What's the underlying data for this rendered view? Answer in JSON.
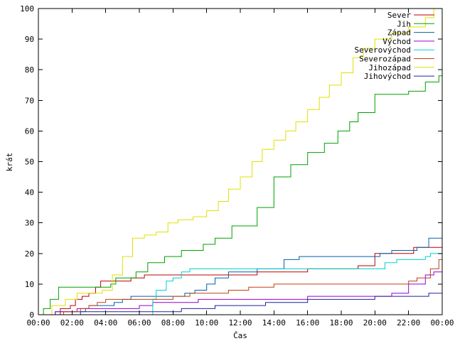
{
  "chart_data": {
    "type": "line",
    "title": "",
    "xlabel": "Čas",
    "ylabel": "krát",
    "xlim": [
      0,
      24
    ],
    "ylim": [
      0,
      100
    ],
    "grid": false,
    "legend_position": "top-right",
    "x_ticks": [
      {
        "value": 0,
        "label": "00:00"
      },
      {
        "value": 2,
        "label": "02:00"
      },
      {
        "value": 4,
        "label": "04:00"
      },
      {
        "value": 6,
        "label": "06:00"
      },
      {
        "value": 8,
        "label": "08:00"
      },
      {
        "value": 10,
        "label": "10:00"
      },
      {
        "value": 12,
        "label": "12:00"
      },
      {
        "value": 14,
        "label": "14:00"
      },
      {
        "value": 16,
        "label": "16:00"
      },
      {
        "value": 18,
        "label": "18:00"
      },
      {
        "value": 20,
        "label": "20:00"
      },
      {
        "value": 22,
        "label": "22:00"
      },
      {
        "value": 24,
        "label": "00:00"
      }
    ],
    "y_ticks": [
      0,
      10,
      20,
      30,
      40,
      50,
      60,
      70,
      80,
      90,
      100
    ],
    "series": [
      {
        "name": "Sever",
        "color": "#c00000",
        "x": [
          0,
          1.3,
          1.9,
          2.2,
          2.6,
          3.0,
          3.4,
          3.7,
          4.2,
          5.5,
          6.3,
          8.3,
          10.5,
          13.0,
          16.0,
          19.0,
          20.0,
          22.3,
          24.0
        ],
        "y": [
          0,
          2,
          3,
          5,
          6,
          7,
          9,
          11,
          11,
          12,
          13,
          13,
          13,
          14,
          15,
          16,
          20,
          22,
          22
        ]
      },
      {
        "name": "Jih",
        "color": "#00a000",
        "x": [
          0,
          0.3,
          0.7,
          1.2,
          3.5,
          4.3,
          4.6,
          5.8,
          6.5,
          7.5,
          8.5,
          9.8,
          10.5,
          11.5,
          13.0,
          14.0,
          15.0,
          16.0,
          17.0,
          17.8,
          18.5,
          19.0,
          20.0,
          20.5,
          22.0,
          23.0,
          23.8,
          24.0
        ],
        "y": [
          0,
          2,
          5,
          9,
          9,
          10,
          12,
          14,
          17,
          19,
          21,
          23,
          25,
          29,
          35,
          45,
          49,
          53,
          56,
          60,
          63,
          66,
          72,
          72,
          73,
          76,
          78,
          78
        ]
      },
      {
        "name": "Západ",
        "color": "#0060ad",
        "x": [
          0,
          0.5,
          1.0,
          2.5,
          2.8,
          3.0,
          4.0,
          4.5,
          5.0,
          5.5,
          6.3,
          8.7,
          9.3,
          10.0,
          10.5,
          11.3,
          13.0,
          14.3,
          14.6,
          15.5,
          18.0,
          20.3,
          21.0,
          22.0,
          22.5,
          23.2,
          24.0
        ],
        "y": [
          0,
          0,
          1,
          1,
          2,
          3,
          3,
          4,
          5,
          6,
          6,
          7,
          8,
          10,
          12,
          14,
          15,
          15,
          18,
          19,
          19,
          20,
          21,
          21,
          22,
          25,
          25
        ]
      },
      {
        "name": "Východ",
        "color": "#9400d3",
        "x": [
          0,
          0.5,
          1.0,
          1.8,
          2.3,
          2.8,
          3.0,
          4.0,
          6.0,
          6.8,
          8.0,
          9.5,
          11.5,
          12.0,
          12.5,
          16.0,
          18.0,
          20.0,
          20.5,
          21.0,
          22.0,
          23.0,
          23.5,
          24.0
        ],
        "y": [
          0,
          0,
          1,
          1,
          2,
          2,
          2,
          2,
          3,
          4,
          4,
          5,
          5,
          5,
          5,
          6,
          6,
          6,
          6,
          7,
          10,
          13,
          14,
          14
        ]
      },
      {
        "name": "Severovýchod",
        "color": "#00d0d0",
        "x": [
          0,
          1.5,
          4.8,
          6.8,
          7.0,
          7.6,
          8.0,
          8.5,
          9.0,
          12.0,
          16.0,
          20.2,
          20.6,
          21.3,
          22.0,
          23.0,
          23.3,
          24.0
        ],
        "y": [
          0,
          0,
          0,
          5,
          8,
          11,
          12,
          14,
          15,
          15,
          15,
          15,
          17,
          18,
          18,
          19,
          20,
          20
        ]
      },
      {
        "name": "Severozápad",
        "color": "#c04010",
        "x": [
          0,
          1.5,
          2.5,
          3.0,
          3.5,
          4.0,
          5.5,
          6.5,
          8.0,
          9.0,
          10.0,
          10.5,
          11.3,
          12.5,
          14.0,
          16.0,
          18.0,
          20.0,
          21.0,
          22.0,
          22.5,
          23.3,
          23.8,
          24.0
        ],
        "y": [
          0,
          1,
          2,
          3,
          4,
          5,
          5,
          5,
          6,
          7,
          7,
          7,
          8,
          9,
          10,
          10,
          10,
          10,
          10,
          11,
          12,
          15,
          18,
          18
        ]
      },
      {
        "name": "Jihozápad",
        "color": "#e0e000",
        "x": [
          0,
          0.8,
          1.6,
          2.3,
          3.8,
          4.4,
          5.0,
          5.6,
          6.3,
          7.0,
          7.7,
          8.3,
          9.2,
          10.0,
          10.7,
          11.3,
          12.0,
          12.7,
          13.3,
          14.0,
          14.7,
          15.3,
          16.0,
          16.7,
          17.3,
          18.0,
          18.7,
          19.3,
          20.0,
          21.0,
          22.0,
          23.0,
          23.5,
          24.0
        ],
        "y": [
          0,
          3,
          5,
          7,
          8,
          13,
          19,
          25,
          26,
          27,
          30,
          31,
          32,
          34,
          37,
          41,
          45,
          50,
          54,
          57,
          60,
          63,
          67,
          71,
          75,
          79,
          84,
          87,
          90,
          92,
          94,
          97,
          100,
          100
        ]
      },
      {
        "name": "Jihovýchod",
        "color": "#2020a0",
        "x": [
          0,
          2.0,
          2.5,
          3.0,
          4.0,
          6.0,
          8.5,
          10.5,
          13.5,
          14.5,
          16.0,
          18.0,
          20.0,
          22.0,
          23.2,
          24.0
        ],
        "y": [
          0,
          0,
          1,
          1,
          1,
          1,
          2,
          3,
          4,
          4,
          5,
          5,
          6,
          6,
          7,
          7
        ]
      }
    ]
  }
}
